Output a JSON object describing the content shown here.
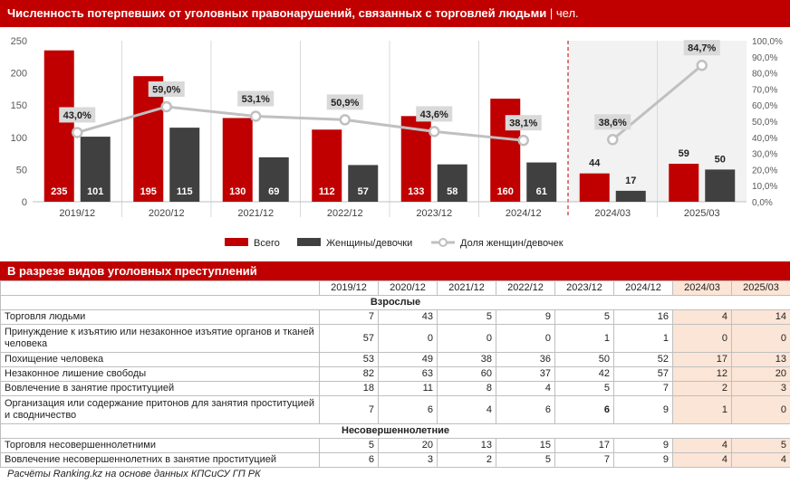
{
  "header": {
    "title": "Численность потерпевших от уголовных правонарушений, связанных с торговлей людьми",
    "unit": " | чел."
  },
  "colors": {
    "total": "#C00000",
    "women": "#404040",
    "share": "#C0C0C0",
    "quarter_bg": "#F2F2F2"
  },
  "chart_data": {
    "type": "bar",
    "title": "Численность потерпевших от уголовных правонарушений, связанных с торговлей людьми | чел.",
    "categories": [
      "2019/12",
      "2020/12",
      "2021/12",
      "2022/12",
      "2023/12",
      "2024/12",
      "2024/03",
      "2025/03"
    ],
    "series": [
      {
        "name": "Всего",
        "type": "bar",
        "values": [
          235,
          195,
          130,
          112,
          133,
          160,
          44,
          59
        ]
      },
      {
        "name": "Женщины/девочки",
        "type": "bar",
        "values": [
          101,
          115,
          69,
          57,
          58,
          61,
          17,
          50
        ]
      },
      {
        "name": "Доля женщин/девочек",
        "type": "line",
        "axis": "right",
        "values": [
          43.0,
          59.0,
          53.1,
          50.9,
          43.6,
          38.1,
          38.6,
          84.7
        ],
        "labels": [
          "43,0%",
          "59,0%",
          "53,1%",
          "50,9%",
          "43,6%",
          "38,1%",
          "38,6%",
          "84,7%"
        ]
      }
    ],
    "y_left": {
      "min": 0,
      "max": 250,
      "ticks": [
        "0",
        "50",
        "100",
        "150",
        "200",
        "250"
      ]
    },
    "y_right": {
      "min": 0,
      "max": 100,
      "ticks": [
        "0,0%",
        "10,0%",
        "20,0%",
        "30,0%",
        "40,0%",
        "50,0%",
        "60,0%",
        "70,0%",
        "80,0%",
        "90,0%",
        "100,0%"
      ]
    },
    "line_segments": [
      [
        0,
        5
      ],
      [
        6,
        7
      ]
    ],
    "quarter_start_index": 6,
    "legend": "bottom"
  },
  "table": {
    "title": "В разрезе видов уголовных преступлений",
    "columns": [
      "2019/12",
      "2020/12",
      "2021/12",
      "2022/12",
      "2023/12",
      "2024/12",
      "2024/03",
      "2025/03"
    ],
    "sections": [
      {
        "name": "Взрослые",
        "rows": [
          {
            "label": "Торговля людьми",
            "values": [
              "7",
              "43",
              "5",
              "9",
              "5",
              "16",
              "4",
              "14"
            ]
          },
          {
            "label": "Принуждение к изъятию или незаконное изъятие органов и тканей человека",
            "values": [
              "57",
              "0",
              "0",
              "0",
              "1",
              "1",
              "0",
              "0"
            ]
          },
          {
            "label": "Похищение человека",
            "values": [
              "53",
              "49",
              "38",
              "36",
              "50",
              "52",
              "17",
              "13"
            ]
          },
          {
            "label": "Незаконное лишение свободы",
            "values": [
              "82",
              "63",
              "60",
              "37",
              "42",
              "57",
              "12",
              "20"
            ]
          },
          {
            "label": "Вовлечение в занятие проституцией",
            "values": [
              "18",
              "11",
              "8",
              "4",
              "5",
              "7",
              "2",
              "3"
            ]
          },
          {
            "label": "Организация или содержание притонов для занятия проституцией и сводничество",
            "values": [
              "7",
              "6",
              "4",
              "6",
              "6",
              "9",
              "1",
              "0"
            ]
          }
        ]
      },
      {
        "name": "Несовершеннолетние",
        "rows": [
          {
            "label": "Торговля несовершеннолетними",
            "values": [
              "5",
              "20",
              "13",
              "15",
              "17",
              "9",
              "4",
              "5"
            ]
          },
          {
            "label": "Вовлечение несовершеннолетних в занятие проституцией",
            "values": [
              "6",
              "3",
              "2",
              "5",
              "7",
              "9",
              "4",
              "4"
            ]
          }
        ]
      }
    ]
  },
  "source": "Расчёты Ranking.kz на основе данных КПСиСУ ГП РК"
}
